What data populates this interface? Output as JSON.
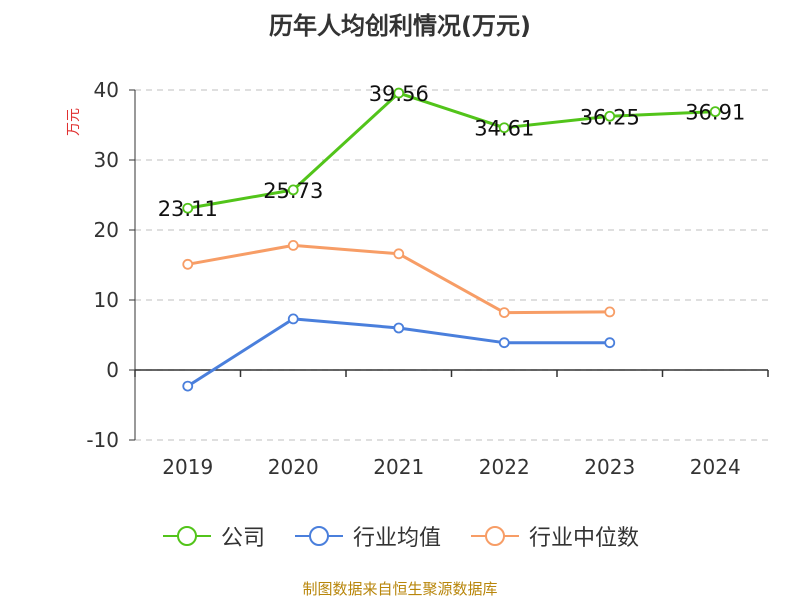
{
  "chart_data": {
    "type": "line",
    "title": "历年人均创利情况(万元)",
    "ylabel": "万元",
    "xlabel": "",
    "categories": [
      "2019",
      "2020",
      "2021",
      "2022",
      "2023",
      "2024"
    ],
    "ylim": [
      -10,
      40
    ],
    "yticks": [
      -10,
      0,
      10,
      20,
      30,
      40
    ],
    "grid": true,
    "legend_position": "bottom",
    "series": [
      {
        "name": "公司",
        "values": [
          23.11,
          25.73,
          39.56,
          34.61,
          36.25,
          36.91
        ],
        "color": "#52c41a",
        "labels": [
          "23.11",
          "25.73",
          "39.56",
          "34.61",
          "36.25",
          "36.91"
        ]
      },
      {
        "name": "行业均值",
        "values": [
          -2.3,
          7.3,
          6.0,
          3.9,
          3.9,
          null
        ],
        "color": "#4a7fdc"
      },
      {
        "name": "行业中位数",
        "values": [
          15.1,
          17.8,
          16.6,
          8.2,
          8.3,
          null
        ],
        "color": "#f79d66"
      }
    ]
  },
  "source": "制图数据来自恒生聚源数据库"
}
